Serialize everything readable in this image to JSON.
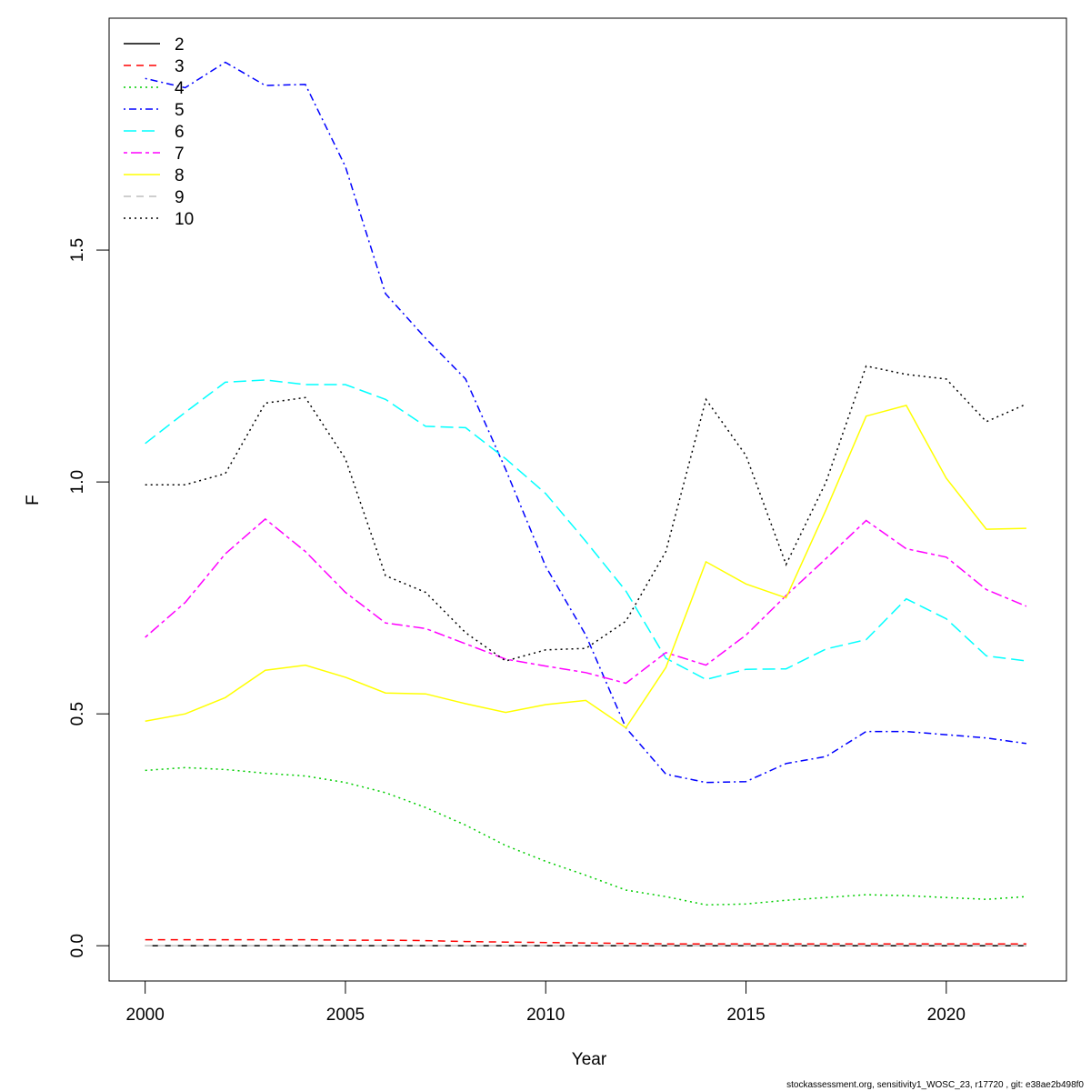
{
  "chart_data": {
    "type": "line",
    "xlabel": "Year",
    "ylabel": "F",
    "xlim": [
      1999.1,
      2023.0
    ],
    "ylim": [
      -0.076,
      2.0
    ],
    "x_ticks": [
      2000,
      2005,
      2010,
      2015,
      2020
    ],
    "y_ticks": [
      0.0,
      0.5,
      1.0,
      1.5
    ],
    "x_tick_labels": [
      "2000",
      "2005",
      "2010",
      "2015",
      "2020"
    ],
    "y_tick_labels": [
      "0.0",
      "0.5",
      "1.0",
      "1.5"
    ],
    "grid": false,
    "legend_position": "top-left",
    "x": [
      2000,
      2001,
      2002,
      2003,
      2004,
      2005,
      2006,
      2007,
      2008,
      2009,
      2010,
      2011,
      2012,
      2013,
      2014,
      2015,
      2016,
      2017,
      2018,
      2019,
      2020,
      2021,
      2022
    ],
    "series": [
      {
        "name": "2",
        "color": "#000000",
        "dash": "solid",
        "values": [
          0,
          0,
          0,
          0,
          0,
          0,
          0,
          0,
          0,
          0,
          0,
          0,
          0,
          0,
          0,
          0,
          0,
          0,
          0,
          0,
          0,
          0,
          0
        ]
      },
      {
        "name": "3",
        "color": "#ff0000",
        "dash": "dashed",
        "values": [
          0.013,
          0.013,
          0.013,
          0.013,
          0.013,
          0.012,
          0.012,
          0.011,
          0.009,
          0.008,
          0.007,
          0.006,
          0.005,
          0.004,
          0.004,
          0.004,
          0.004,
          0.004,
          0.004,
          0.004,
          0.004,
          0.004,
          0.004
        ]
      },
      {
        "name": "4",
        "color": "#00cd00",
        "dash": "dotted",
        "values": [
          0.378,
          0.384,
          0.38,
          0.372,
          0.366,
          0.352,
          0.33,
          0.298,
          0.26,
          0.216,
          0.182,
          0.152,
          0.12,
          0.106,
          0.088,
          0.09,
          0.098,
          0.104,
          0.11,
          0.108,
          0.104,
          0.1,
          0.106
        ]
      },
      {
        "name": "5",
        "color": "#0000ff",
        "dash": "dotdash",
        "values": [
          1.87,
          1.85,
          1.905,
          1.855,
          1.857,
          1.68,
          1.406,
          1.31,
          1.222,
          1.027,
          0.818,
          0.67,
          0.47,
          0.37,
          0.352,
          0.354,
          0.393,
          0.408,
          0.462,
          0.462,
          0.455,
          0.448,
          0.436
        ]
      },
      {
        "name": "6",
        "color": "#00ffff",
        "dash": "longdash",
        "values": [
          1.083,
          1.15,
          1.215,
          1.22,
          1.21,
          1.21,
          1.178,
          1.12,
          1.117,
          1.05,
          0.975,
          0.872,
          0.765,
          0.62,
          0.574,
          0.596,
          0.597,
          0.64,
          0.66,
          0.748,
          0.705,
          0.625,
          0.614
        ]
      },
      {
        "name": "7",
        "color": "#ff00ff",
        "dash": "twodash",
        "values": [
          0.665,
          0.74,
          0.845,
          0.92,
          0.85,
          0.762,
          0.696,
          0.684,
          0.651,
          0.618,
          0.603,
          0.589,
          0.566,
          0.632,
          0.605,
          0.67,
          0.755,
          0.835,
          0.917,
          0.856,
          0.838,
          0.768,
          0.732
        ]
      },
      {
        "name": "8",
        "color": "#ffff00",
        "dash": "solid",
        "values": [
          0.484,
          0.5,
          0.535,
          0.594,
          0.605,
          0.579,
          0.545,
          0.543,
          0.522,
          0.503,
          0.52,
          0.529,
          0.47,
          0.6,
          0.828,
          0.78,
          0.75,
          0.94,
          1.142,
          1.165,
          1.008,
          0.898,
          0.9
        ]
      },
      {
        "name": "9",
        "color": "#bebebe",
        "dash": "dashed",
        "values": [
          0,
          0,
          0,
          0,
          0,
          0,
          0,
          0,
          0,
          0,
          0,
          0,
          0,
          0,
          0,
          0,
          0,
          0,
          0,
          0,
          0,
          0,
          0
        ]
      },
      {
        "name": "10",
        "color": "#000000",
        "dash": "dotted",
        "values": [
          0.994,
          0.994,
          1.018,
          1.17,
          1.182,
          1.05,
          0.798,
          0.762,
          0.675,
          0.614,
          0.638,
          0.641,
          0.7,
          0.85,
          1.178,
          1.057,
          0.822,
          1.0,
          1.25,
          1.232,
          1.222,
          1.13,
          1.168
        ]
      }
    ]
  },
  "footer_text": "stockassessment.org, sensitivity1_WOSC_23, r17720 , git: e38ae2b498f0"
}
